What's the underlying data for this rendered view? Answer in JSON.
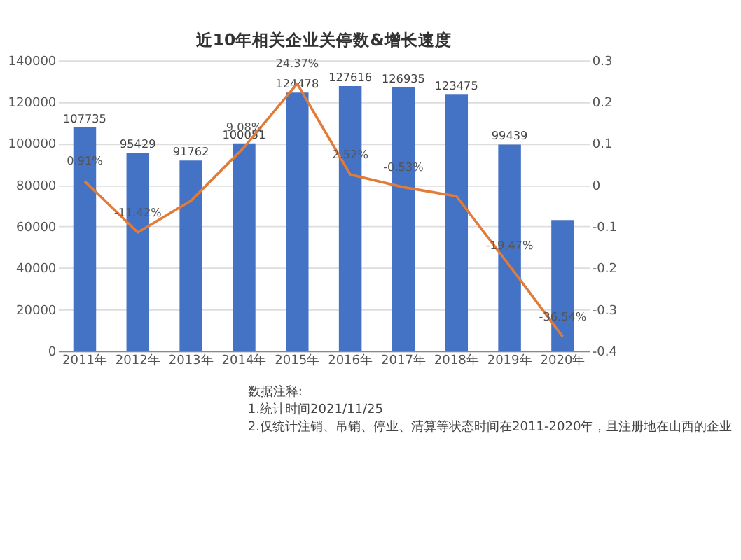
{
  "chart_data": {
    "type": "bar",
    "title": "近10年相关企业关停数&增长速度",
    "categories": [
      "2011年",
      "2012年",
      "2013年",
      "2014年",
      "2015年",
      "2016年",
      "2017年",
      "2018年",
      "2019年",
      "2020年"
    ],
    "series": [
      {
        "color": "#4472c4",
        "values": [
          107735,
          95429,
          91762,
          100051,
          124478,
          127616,
          126935,
          123475,
          99439,
          63100
        ],
        "value_labels": [
          "107735",
          "95429",
          "91762",
          "100051",
          "124478",
          "127616",
          "126935",
          "123475",
          "99439",
          null
        ]
      },
      {
        "type": "line",
        "axis": "y2",
        "color": "#e07b39",
        "values": [
          0.0091,
          -0.1142,
          -0.038,
          0.0908,
          0.2437,
          0.0252,
          -0.0053,
          -0.027,
          -0.1947,
          -0.3654
        ],
        "value_labels": [
          "0.91%",
          "-11.42%",
          null,
          "9.08%",
          "24.37%",
          "2.52%",
          "-0.53%",
          null,
          "-19.47%",
          "-36.54%"
        ]
      }
    ],
    "ylim": [
      0,
      140000
    ],
    "yticks": [
      0,
      20000,
      40000,
      60000,
      80000,
      100000,
      120000,
      140000
    ],
    "y2lim": [
      -0.4,
      0.3
    ],
    "y2ticks": [
      -0.4,
      -0.3,
      -0.2,
      -0.1,
      0,
      0.1,
      0.2,
      0.3
    ],
    "grid": "y",
    "annotations": [
      "数据注释:",
      "1.统计时间2021/11/25",
      "2.仅统计注销、吊销、停业、清算等状态时间在2011-2020年，且注册地在山西的企业"
    ]
  }
}
